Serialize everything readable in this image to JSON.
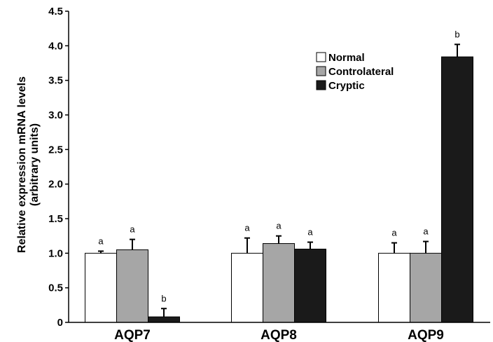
{
  "chart_data": {
    "type": "bar",
    "title": "",
    "xlabel": "",
    "ylabel": [
      "Relative expression mRNA  levels",
      "(arbitrary units)"
    ],
    "ylim": [
      0,
      4.5
    ],
    "yticks": [
      "0",
      "0.5",
      "1.0",
      "1.5",
      "2.0",
      "2.5",
      "3.0",
      "3.5",
      "4.0",
      "4.5"
    ],
    "categories": [
      "AQP7",
      "AQP8",
      "AQP9"
    ],
    "legend_position": "top-right",
    "grid": false,
    "series": [
      {
        "name": "Normal",
        "color": "#ffffff",
        "values": [
          1.0,
          1.0,
          1.0
        ],
        "errors": [
          0.03,
          0.22,
          0.15
        ],
        "labels": [
          "a",
          "a",
          "a"
        ]
      },
      {
        "name": "Controlateral",
        "color": "#a6a6a6",
        "values": [
          1.05,
          1.14,
          1.0
        ],
        "errors": [
          0.15,
          0.11,
          0.17
        ],
        "labels": [
          "a",
          "a",
          "a"
        ]
      },
      {
        "name": "Cryptic",
        "color": "#1a1a1a",
        "values": [
          0.08,
          1.06,
          3.84
        ],
        "errors": [
          0.12,
          0.1,
          0.18
        ],
        "labels": [
          "b",
          "a",
          "b"
        ]
      }
    ]
  }
}
